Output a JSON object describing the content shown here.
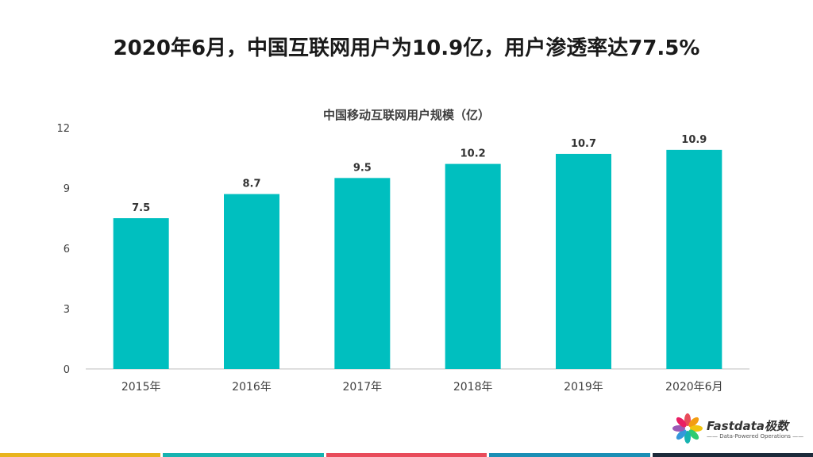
{
  "headline": "2020年6月，中国互联网用户为10.9亿，用户渗透率达77.5%",
  "chart_data": {
    "type": "bar",
    "title": "中国移动互联网用户规模（亿）",
    "categories": [
      "2015年",
      "2016年",
      "2017年",
      "2018年",
      "2019年",
      "2020年6月"
    ],
    "values": [
      7.5,
      8.7,
      9.5,
      10.2,
      10.7,
      10.9
    ],
    "value_labels": [
      "7.5",
      "8.7",
      "9.5",
      "10.2",
      "10.7",
      "10.9"
    ],
    "yticks": [
      "0",
      "3",
      "6",
      "9",
      "12"
    ],
    "ylim": [
      0,
      12
    ],
    "xlabel": "",
    "ylabel": "",
    "grid": false,
    "bar_color": "#00bfbf"
  },
  "logo": {
    "name": "Fastdata极数",
    "tagline": "—— Data-Powered Operations ——"
  },
  "footer_colors": [
    "#e8b41e",
    "#16b3b0",
    "#e84b5a",
    "#1a8fb5",
    "#1c2a3a"
  ]
}
